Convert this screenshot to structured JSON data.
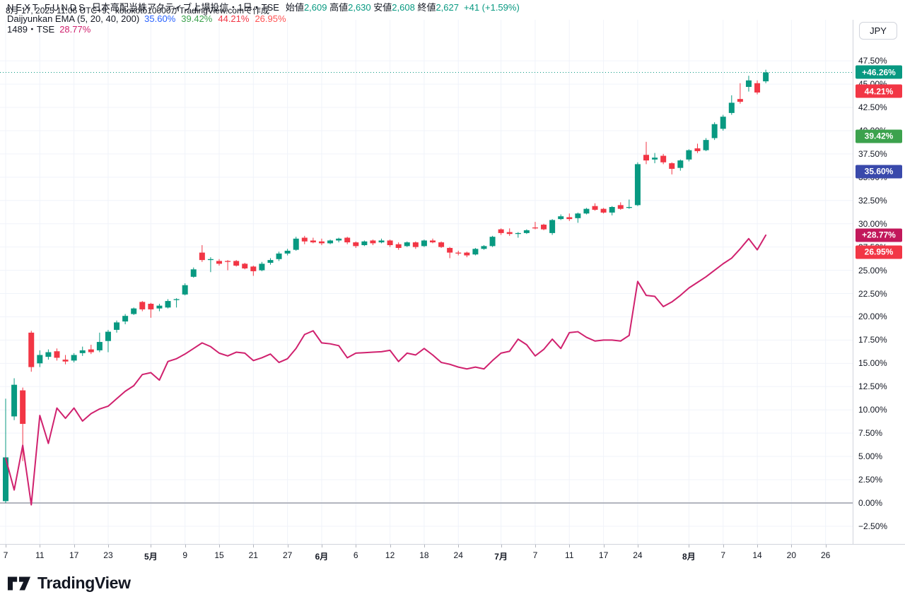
{
  "header": {
    "created_text": "8月 17, 2025 11:06 UTC+9、kotokoto10000がTradingView.comで作成"
  },
  "toolbar": {
    "currency": "JPY"
  },
  "legend": {
    "symbol": {
      "name": "NEXT FUNDS",
      "meta": "日本高配当株アクティブ上場投信・1日・TSE",
      "ohlc": [
        {
          "label": "始値",
          "value": "2,609"
        },
        {
          "label": "高値",
          "value": "2,630"
        },
        {
          "label": "安値",
          "value": "2,608"
        },
        {
          "label": "終値",
          "value": "2,627"
        }
      ],
      "change": "+41 (+1.59%)",
      "up_color": "#089981"
    },
    "indicator": {
      "name": "Daijyunkan EMA (5, 20, 40, 200)",
      "values": [
        {
          "text": "35.60%",
          "color": "#2962FF"
        },
        {
          "text": "39.42%",
          "color": "#3CA24D"
        },
        {
          "text": "44.21%",
          "color": "#F23645"
        },
        {
          "text": "26.95%",
          "color": "#FF5252"
        }
      ]
    },
    "compare": {
      "name": "1489・TSE",
      "value": "28.77%",
      "color": "#D0216E"
    }
  },
  "price_axis": {
    "ticks": [
      {
        "label": "47.50%",
        "value": 47.5
      },
      {
        "label": "45.00%",
        "value": 45.0
      },
      {
        "label": "42.50%",
        "value": 42.5
      },
      {
        "label": "40.00%",
        "value": 40.0
      },
      {
        "label": "37.50%",
        "value": 37.5
      },
      {
        "label": "35.00%",
        "value": 35.0
      },
      {
        "label": "32.50%",
        "value": 32.5
      },
      {
        "label": "30.00%",
        "value": 30.0
      },
      {
        "label": "27.50%",
        "value": 27.5
      },
      {
        "label": "25.00%",
        "value": 25.0
      },
      {
        "label": "22.50%",
        "value": 22.5
      },
      {
        "label": "20.00%",
        "value": 20.0
      },
      {
        "label": "17.50%",
        "value": 17.5
      },
      {
        "label": "15.00%",
        "value": 15.0
      },
      {
        "label": "12.50%",
        "value": 12.5
      },
      {
        "label": "10.00%",
        "value": 10.0
      },
      {
        "label": "7.50%",
        "value": 7.5
      },
      {
        "label": "5.00%",
        "value": 5.0
      },
      {
        "label": "2.50%",
        "value": 2.5
      },
      {
        "label": "0.00%",
        "value": 0.0
      },
      {
        "label": "−2.50%",
        "value": -2.5
      }
    ],
    "badges": [
      {
        "text": "+46.26%",
        "value": 46.26,
        "color": "#089981"
      },
      {
        "text": "44.21%",
        "value": 44.21,
        "color": "#F23645"
      },
      {
        "text": "39.42%",
        "value": 39.42,
        "color": "#3CA24D"
      },
      {
        "text": "35.60%",
        "value": 35.6,
        "color": "#3949AB"
      },
      {
        "text": "+28.77%",
        "value": 28.77,
        "color": "#C2185B"
      },
      {
        "text": "26.95%",
        "value": 26.95,
        "color": "#F23645"
      }
    ]
  },
  "time_axis": {
    "ticks": [
      {
        "i": 0,
        "label": "7",
        "bold": false
      },
      {
        "i": 4,
        "label": "11",
        "bold": false
      },
      {
        "i": 8,
        "label": "17",
        "bold": false
      },
      {
        "i": 12,
        "label": "23",
        "bold": false
      },
      {
        "i": 17,
        "label": "5月",
        "bold": true
      },
      {
        "i": 21,
        "label": "9",
        "bold": false
      },
      {
        "i": 25,
        "label": "15",
        "bold": false
      },
      {
        "i": 29,
        "label": "21",
        "bold": false
      },
      {
        "i": 33,
        "label": "27",
        "bold": false
      },
      {
        "i": 37,
        "label": "6月",
        "bold": true
      },
      {
        "i": 41,
        "label": "6",
        "bold": false
      },
      {
        "i": 45,
        "label": "12",
        "bold": false
      },
      {
        "i": 49,
        "label": "18",
        "bold": false
      },
      {
        "i": 53,
        "label": "24",
        "bold": false
      },
      {
        "i": 58,
        "label": "7月",
        "bold": true
      },
      {
        "i": 62,
        "label": "7",
        "bold": false
      },
      {
        "i": 66,
        "label": "11",
        "bold": false
      },
      {
        "i": 70,
        "label": "17",
        "bold": false
      },
      {
        "i": 74,
        "label": "24",
        "bold": false
      },
      {
        "i": 80,
        "label": "8月",
        "bold": true
      },
      {
        "i": 84,
        "label": "7",
        "bold": false
      },
      {
        "i": 88,
        "label": "14",
        "bold": false
      },
      {
        "i": 92,
        "label": "20",
        "bold": false
      },
      {
        "i": 96,
        "label": "26",
        "bold": false
      }
    ]
  },
  "chart_data": {
    "type": "candlestick",
    "title": "NEXT FUNDS 日本高配当株アクティブ上場投信 (1日, TSE) percent scale vs 1489",
    "y_axis": {
      "min": -2.5,
      "max": 47.5,
      "step": 2.5,
      "unit": "%"
    },
    "grid": true,
    "up_color": "#089981",
    "down_color": "#F23645",
    "zero_line": {
      "value": 0,
      "color": "#B2B5BE"
    },
    "last_price_line": {
      "value": 46.26,
      "color": "#089981",
      "style": "dotted"
    },
    "candles": [
      {
        "date": "04-07",
        "o": 0.2,
        "h": 11.2,
        "l": 0.0,
        "c": 4.9
      },
      {
        "date": "04-08",
        "o": 9.3,
        "h": 13.4,
        "l": 8.9,
        "c": 12.7
      },
      {
        "date": "04-09",
        "o": 12.1,
        "h": 12.4,
        "l": 4.5,
        "c": 8.5
      },
      {
        "date": "04-10",
        "o": 18.3,
        "h": 18.5,
        "l": 14.1,
        "c": 14.6
      },
      {
        "date": "04-11",
        "o": 15.0,
        "h": 16.4,
        "l": 14.6,
        "c": 15.9
      },
      {
        "date": "04-14",
        "o": 15.7,
        "h": 16.5,
        "l": 15.4,
        "c": 16.2
      },
      {
        "date": "04-15",
        "o": 16.3,
        "h": 16.6,
        "l": 15.3,
        "c": 15.6
      },
      {
        "date": "04-16",
        "o": 15.4,
        "h": 15.9,
        "l": 14.9,
        "c": 15.2
      },
      {
        "date": "04-17",
        "o": 15.3,
        "h": 16.1,
        "l": 15.1,
        "c": 15.9
      },
      {
        "date": "04-18",
        "o": 16.1,
        "h": 16.8,
        "l": 15.8,
        "c": 16.4
      },
      {
        "date": "04-21",
        "o": 16.5,
        "h": 17.0,
        "l": 16.0,
        "c": 16.2
      },
      {
        "date": "04-22",
        "o": 16.4,
        "h": 18.3,
        "l": 16.2,
        "c": 17.3
      },
      {
        "date": "04-23",
        "o": 17.4,
        "h": 18.6,
        "l": 16.2,
        "c": 18.4
      },
      {
        "date": "04-24",
        "o": 18.6,
        "h": 19.6,
        "l": 18.3,
        "c": 19.4
      },
      {
        "date": "04-25",
        "o": 19.5,
        "h": 20.3,
        "l": 19.2,
        "c": 20.1
      },
      {
        "date": "04-28",
        "o": 20.3,
        "h": 21.0,
        "l": 20.2,
        "c": 20.9
      },
      {
        "date": "04-30",
        "o": 21.6,
        "h": 21.7,
        "l": 20.6,
        "c": 20.8
      },
      {
        "date": "05-01",
        "o": 21.4,
        "h": 21.5,
        "l": 19.9,
        "c": 20.8
      },
      {
        "date": "05-02",
        "o": 20.9,
        "h": 21.4,
        "l": 20.6,
        "c": 21.2
      },
      {
        "date": "05-07",
        "o": 21.0,
        "h": 21.9,
        "l": 20.9,
        "c": 21.7
      },
      {
        "date": "05-08",
        "o": 21.8,
        "h": 22.0,
        "l": 21.0,
        "c": 21.9
      },
      {
        "date": "05-09",
        "o": 22.4,
        "h": 23.6,
        "l": 22.3,
        "c": 23.4
      },
      {
        "date": "05-12",
        "o": 24.3,
        "h": 25.3,
        "l": 24.2,
        "c": 25.1
      },
      {
        "date": "05-13",
        "o": 26.9,
        "h": 27.7,
        "l": 25.9,
        "c": 26.1
      },
      {
        "date": "05-14",
        "o": 26.1,
        "h": 26.4,
        "l": 24.8,
        "c": 26.2
      },
      {
        "date": "05-15",
        "o": 26.0,
        "h": 26.2,
        "l": 25.5,
        "c": 25.7
      },
      {
        "date": "05-16",
        "o": 26.0,
        "h": 26.1,
        "l": 25.0,
        "c": 25.9
      },
      {
        "date": "05-19",
        "o": 26.0,
        "h": 26.1,
        "l": 25.4,
        "c": 25.5
      },
      {
        "date": "05-20",
        "o": 25.7,
        "h": 25.8,
        "l": 25.1,
        "c": 25.2
      },
      {
        "date": "05-21",
        "o": 25.4,
        "h": 25.5,
        "l": 24.4,
        "c": 24.9
      },
      {
        "date": "05-22",
        "o": 25.0,
        "h": 25.9,
        "l": 24.9,
        "c": 25.7
      },
      {
        "date": "05-23",
        "o": 25.8,
        "h": 26.3,
        "l": 25.6,
        "c": 26.1
      },
      {
        "date": "05-26",
        "o": 26.2,
        "h": 27.0,
        "l": 26.0,
        "c": 26.8
      },
      {
        "date": "05-27",
        "o": 26.8,
        "h": 27.3,
        "l": 26.6,
        "c": 27.1
      },
      {
        "date": "05-28",
        "o": 27.2,
        "h": 28.6,
        "l": 27.1,
        "c": 28.4
      },
      {
        "date": "05-29",
        "o": 28.5,
        "h": 28.7,
        "l": 27.8,
        "c": 28.1
      },
      {
        "date": "05-30",
        "o": 28.2,
        "h": 28.5,
        "l": 27.9,
        "c": 28.0
      },
      {
        "date": "06-02",
        "o": 28.1,
        "h": 28.4,
        "l": 27.7,
        "c": 27.9
      },
      {
        "date": "06-03",
        "o": 27.9,
        "h": 28.3,
        "l": 27.8,
        "c": 28.2
      },
      {
        "date": "06-04",
        "o": 28.2,
        "h": 28.5,
        "l": 28.0,
        "c": 28.4
      },
      {
        "date": "06-05",
        "o": 28.5,
        "h": 28.6,
        "l": 27.8,
        "c": 28.0
      },
      {
        "date": "06-06",
        "o": 28.0,
        "h": 28.1,
        "l": 27.4,
        "c": 27.6
      },
      {
        "date": "06-09",
        "o": 27.7,
        "h": 28.2,
        "l": 27.6,
        "c": 28.1
      },
      {
        "date": "06-10",
        "o": 28.2,
        "h": 28.3,
        "l": 27.7,
        "c": 27.9
      },
      {
        "date": "06-11",
        "o": 28.0,
        "h": 28.4,
        "l": 27.9,
        "c": 28.2
      },
      {
        "date": "06-12",
        "o": 28.2,
        "h": 28.3,
        "l": 27.5,
        "c": 27.7
      },
      {
        "date": "06-13",
        "o": 27.8,
        "h": 28.0,
        "l": 27.2,
        "c": 27.4
      },
      {
        "date": "06-16",
        "o": 27.6,
        "h": 28.1,
        "l": 27.5,
        "c": 28.0
      },
      {
        "date": "06-17",
        "o": 28.0,
        "h": 28.1,
        "l": 27.3,
        "c": 27.5
      },
      {
        "date": "06-18",
        "o": 27.6,
        "h": 28.3,
        "l": 27.5,
        "c": 28.2
      },
      {
        "date": "06-19",
        "o": 28.2,
        "h": 28.4,
        "l": 27.9,
        "c": 28.0
      },
      {
        "date": "06-20",
        "o": 28.0,
        "h": 28.1,
        "l": 27.4,
        "c": 27.5
      },
      {
        "date": "06-23",
        "o": 27.4,
        "h": 27.5,
        "l": 26.3,
        "c": 26.9
      },
      {
        "date": "06-24",
        "o": 26.9,
        "h": 27.1,
        "l": 26.6,
        "c": 26.8
      },
      {
        "date": "06-25",
        "o": 26.9,
        "h": 27.0,
        "l": 26.4,
        "c": 26.6
      },
      {
        "date": "06-26",
        "o": 26.7,
        "h": 27.4,
        "l": 26.6,
        "c": 27.3
      },
      {
        "date": "06-27",
        "o": 27.3,
        "h": 27.7,
        "l": 27.2,
        "c": 27.6
      },
      {
        "date": "06-30",
        "o": 27.6,
        "h": 28.7,
        "l": 27.5,
        "c": 28.6
      },
      {
        "date": "07-01",
        "o": 29.4,
        "h": 29.5,
        "l": 28.8,
        "c": 29.0
      },
      {
        "date": "07-02",
        "o": 29.1,
        "h": 29.5,
        "l": 28.7,
        "c": 28.9
      },
      {
        "date": "07-03",
        "o": 28.9,
        "h": 29.1,
        "l": 28.5,
        "c": 29.0
      },
      {
        "date": "07-04",
        "o": 29.0,
        "h": 29.4,
        "l": 28.9,
        "c": 29.3
      },
      {
        "date": "07-07",
        "o": 29.6,
        "h": 30.2,
        "l": 29.4,
        "c": 29.5
      },
      {
        "date": "07-08",
        "o": 29.9,
        "h": 30.0,
        "l": 29.3,
        "c": 29.4
      },
      {
        "date": "07-09",
        "o": 29.0,
        "h": 30.5,
        "l": 28.8,
        "c": 30.4
      },
      {
        "date": "07-10",
        "o": 30.5,
        "h": 31.0,
        "l": 30.4,
        "c": 30.8
      },
      {
        "date": "07-11",
        "o": 30.7,
        "h": 31.1,
        "l": 30.3,
        "c": 30.5
      },
      {
        "date": "07-14",
        "o": 30.6,
        "h": 31.2,
        "l": 30.1,
        "c": 31.1
      },
      {
        "date": "07-15",
        "o": 31.1,
        "h": 31.7,
        "l": 31.0,
        "c": 31.6
      },
      {
        "date": "07-16",
        "o": 31.9,
        "h": 32.2,
        "l": 31.4,
        "c": 31.5
      },
      {
        "date": "07-17",
        "o": 31.6,
        "h": 31.7,
        "l": 31.1,
        "c": 31.2
      },
      {
        "date": "07-18",
        "o": 31.2,
        "h": 31.9,
        "l": 30.9,
        "c": 31.8
      },
      {
        "date": "07-22",
        "o": 32.0,
        "h": 32.3,
        "l": 31.5,
        "c": 31.6
      },
      {
        "date": "07-23",
        "o": 31.7,
        "h": 32.6,
        "l": 31.6,
        "c": 31.8
      },
      {
        "date": "07-24",
        "o": 32.0,
        "h": 36.6,
        "l": 31.9,
        "c": 36.4
      },
      {
        "date": "07-25",
        "o": 37.4,
        "h": 38.8,
        "l": 36.4,
        "c": 36.8
      },
      {
        "date": "07-28",
        "o": 36.9,
        "h": 37.6,
        "l": 36.5,
        "c": 37.1
      },
      {
        "date": "07-29",
        "o": 37.3,
        "h": 37.5,
        "l": 36.4,
        "c": 36.6
      },
      {
        "date": "07-30",
        "o": 36.5,
        "h": 36.6,
        "l": 35.3,
        "c": 35.9
      },
      {
        "date": "07-31",
        "o": 36.0,
        "h": 36.9,
        "l": 35.7,
        "c": 36.8
      },
      {
        "date": "08-01",
        "o": 36.9,
        "h": 38.0,
        "l": 36.7,
        "c": 37.9
      },
      {
        "date": "08-04",
        "o": 38.1,
        "h": 38.6,
        "l": 37.6,
        "c": 37.8
      },
      {
        "date": "08-05",
        "o": 37.9,
        "h": 39.2,
        "l": 37.8,
        "c": 39.0
      },
      {
        "date": "08-06",
        "o": 39.2,
        "h": 40.9,
        "l": 39.0,
        "c": 40.7
      },
      {
        "date": "08-07",
        "o": 40.2,
        "h": 41.7,
        "l": 40.0,
        "c": 41.5
      },
      {
        "date": "08-08",
        "o": 41.9,
        "h": 43.8,
        "l": 41.7,
        "c": 43.0
      },
      {
        "date": "08-12",
        "o": 43.4,
        "h": 45.1,
        "l": 42.9,
        "c": 43.1
      },
      {
        "date": "08-13",
        "o": 44.7,
        "h": 45.9,
        "l": 44.2,
        "c": 45.4
      },
      {
        "date": "08-14",
        "o": 45.1,
        "h": 45.4,
        "l": 43.9,
        "c": 44.1
      },
      {
        "date": "08-15",
        "o": 45.3,
        "h": 46.55,
        "l": 45.1,
        "c": 46.26
      }
    ],
    "compare_series": {
      "name": "1489・TSE",
      "color": "#D0216E",
      "values": [
        4.8,
        1.4,
        6.2,
        -0.2,
        9.4,
        6.4,
        10.2,
        9.1,
        10.2,
        8.8,
        9.6,
        10.1,
        10.4,
        11.2,
        12.0,
        12.6,
        13.8,
        14.0,
        13.2,
        15.2,
        15.5,
        16.0,
        16.6,
        17.2,
        16.8,
        16.1,
        15.8,
        16.2,
        16.1,
        15.3,
        15.6,
        16.0,
        15.1,
        15.5,
        16.6,
        18.1,
        18.5,
        17.2,
        17.1,
        16.9,
        15.6,
        16.1,
        16.15,
        16.2,
        16.25,
        16.4,
        15.2,
        16.1,
        15.9,
        16.6,
        15.9,
        15.1,
        14.9,
        14.6,
        14.4,
        14.6,
        14.4,
        15.3,
        16.1,
        16.3,
        17.6,
        17.0,
        15.8,
        16.5,
        17.6,
        16.6,
        18.3,
        18.4,
        17.8,
        17.4,
        17.5,
        17.5,
        17.4,
        18.0,
        23.8,
        22.3,
        22.2,
        21.1,
        21.6,
        22.3,
        23.1,
        23.7,
        24.3,
        25.0,
        25.7,
        26.3,
        27.3,
        28.4,
        27.2,
        28.77
      ]
    }
  },
  "footer": {
    "brand": "TradingView"
  }
}
